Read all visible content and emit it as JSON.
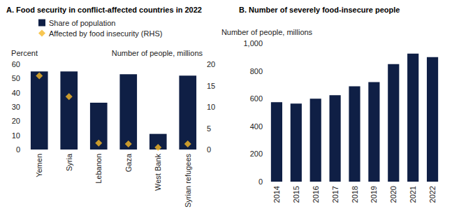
{
  "chart_data": [
    {
      "type": "bar",
      "title": "A. Food security in conflict-affected countries in 2022",
      "categories": [
        "Yemen",
        "Syria",
        "Lebanon",
        "Gaza",
        "West Bank",
        "Syrian refugees"
      ],
      "series": [
        {
          "name": "Share of population",
          "type": "bar",
          "color": "#0f1f45",
          "values": [
            55,
            55,
            33,
            53,
            11,
            52
          ]
        },
        {
          "name": "Affected by food insecurity (RHS)",
          "type": "scatter",
          "marker": "diamond",
          "axis": "y2",
          "color": "#f6b826",
          "values": [
            17.3,
            12.4,
            1.5,
            1.3,
            0.5,
            1.3
          ]
        }
      ],
      "ylabel": "Percent",
      "y2label": "Number of people, millions",
      "ylim": [
        0,
        60
      ],
      "yticks": [
        0,
        10,
        20,
        30,
        40,
        50,
        60
      ],
      "y2lim": [
        0,
        20
      ],
      "y2ticks": [
        0,
        5,
        10,
        15,
        20
      ],
      "legend": "top-left",
      "grid": false
    },
    {
      "type": "bar",
      "title": "B. Number of severely food-insecure people",
      "categories": [
        "2014",
        "2015",
        "2016",
        "2017",
        "2018",
        "2019",
        "2020",
        "2021",
        "2022"
      ],
      "values": [
        575,
        565,
        600,
        625,
        690,
        720,
        850,
        925,
        900
      ],
      "color": "#0f1f45",
      "ylabel": "Number of people, millions",
      "ylim": [
        0,
        1000
      ],
      "yticks": [
        0,
        200,
        400,
        600,
        800,
        {
          "value": 1000,
          "label": "1,000"
        }
      ],
      "grid": false
    }
  ]
}
